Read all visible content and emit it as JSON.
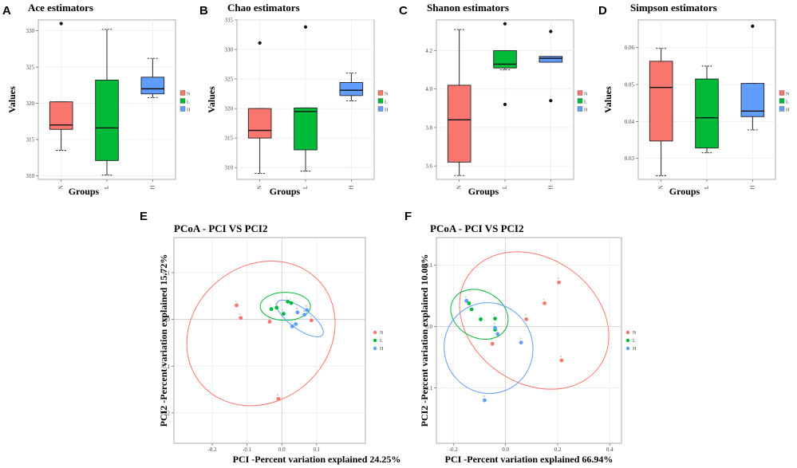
{
  "colors": {
    "N": "#f8766d",
    "L": "#00ba38",
    "H": "#619cff",
    "grid": "#ebebeb",
    "panel_border": "#9a9a9a"
  },
  "legend": [
    "N",
    "L",
    "H"
  ],
  "chart_data": [
    {
      "id": "A",
      "letter": "A",
      "type": "box",
      "title": "Ace estimators",
      "xlabel": "Groups",
      "ylabel": "Values",
      "ylim": [
        309.5,
        331.5
      ],
      "yticks": [
        310,
        315,
        320,
        325,
        330
      ],
      "categories": [
        "N",
        "L",
        "H"
      ],
      "boxes": [
        {
          "group": "N",
          "whisker_low": 313.5,
          "q1": 316.4,
          "median": 317.0,
          "q3": 320.2,
          "whisker_high": 320.2,
          "outliers": [
            331.0
          ]
        },
        {
          "group": "L",
          "whisker_low": 310.1,
          "q1": 312.1,
          "median": 316.6,
          "q3": 323.2,
          "whisker_high": 330.2,
          "outliers": []
        },
        {
          "group": "H",
          "whisker_low": 320.8,
          "q1": 321.3,
          "median": 322.0,
          "q3": 323.6,
          "whisker_high": 326.2,
          "outliers": []
        }
      ]
    },
    {
      "id": "B",
      "letter": "B",
      "type": "box",
      "title": "Chao estimators",
      "xlabel": "Groups",
      "ylabel": "Values",
      "ylim": [
        308.0,
        335.0
      ],
      "yticks": [
        310,
        315,
        320,
        325,
        330,
        335
      ],
      "categories": [
        "N",
        "L",
        "H"
      ],
      "boxes": [
        {
          "group": "N",
          "whisker_low": 309.0,
          "q1": 315.0,
          "median": 316.3,
          "q3": 320.0,
          "whisker_high": 320.0,
          "outliers": [
            331.1
          ]
        },
        {
          "group": "L",
          "whisker_low": 309.4,
          "q1": 313.0,
          "median": 319.5,
          "q3": 320.1,
          "whisker_high": 320.1,
          "outliers": [
            333.8
          ]
        },
        {
          "group": "H",
          "whisker_low": 321.3,
          "q1": 322.2,
          "median": 323.1,
          "q3": 324.4,
          "whisker_high": 326.0,
          "outliers": []
        }
      ]
    },
    {
      "id": "C",
      "letter": "C",
      "type": "box",
      "title": "Shanon estimators",
      "xlabel": "Groups",
      "ylabel": "",
      "ylim": [
        3.53,
        4.36
      ],
      "yticks": [
        3.6,
        3.8,
        4.0,
        4.2
      ],
      "ytick_labels": [
        "3.6",
        "3.8",
        "4.0",
        "4.2"
      ],
      "categories": [
        "N",
        "L",
        "H"
      ],
      "boxes": [
        {
          "group": "N",
          "whisker_low": 3.55,
          "q1": 3.62,
          "median": 3.84,
          "q3": 4.02,
          "whisker_high": 4.31,
          "outliers": []
        },
        {
          "group": "L",
          "whisker_low": 4.1,
          "q1": 4.11,
          "median": 4.13,
          "q3": 4.2,
          "whisker_high": 4.2,
          "outliers": [
            4.34,
            3.92
          ]
        },
        {
          "group": "H",
          "whisker_low": 4.14,
          "q1": 4.14,
          "median": 4.16,
          "q3": 4.17,
          "whisker_high": 4.17,
          "outliers": [
            4.3,
            3.94
          ]
        }
      ]
    },
    {
      "id": "D",
      "letter": "D",
      "type": "box",
      "title": "Simpson estimators",
      "xlabel": "Groups",
      "ylabel": "Values",
      "ylim": [
        0.0243,
        0.0675
      ],
      "yticks": [
        0.03,
        0.04,
        0.05,
        0.06
      ],
      "ytick_labels": [
        "0.03",
        "0.04",
        "0.05",
        "0.06"
      ],
      "categories": [
        "N",
        "L",
        "H"
      ],
      "boxes": [
        {
          "group": "N",
          "whisker_low": 0.0253,
          "q1": 0.0347,
          "median": 0.0492,
          "q3": 0.0563,
          "whisker_high": 0.0598,
          "outliers": []
        },
        {
          "group": "L",
          "whisker_low": 0.0315,
          "q1": 0.0328,
          "median": 0.041,
          "q3": 0.0515,
          "whisker_high": 0.055,
          "outliers": []
        },
        {
          "group": "H",
          "whisker_low": 0.0377,
          "q1": 0.0413,
          "median": 0.0428,
          "q3": 0.0503,
          "whisker_high": 0.0503,
          "outliers": [
            0.0658
          ]
        }
      ]
    },
    {
      "id": "E",
      "letter": "E",
      "type": "scatter",
      "title": "PCoA - PCI VS PCI2",
      "xlabel": "PCI -Percent variation explained 24.25%",
      "ylabel": "PCI2 -Percent variation explained 15.72%",
      "xlim": [
        -0.31,
        0.24
      ],
      "ylim": [
        -0.265,
        0.175
      ],
      "xticks": [
        -0.2,
        -0.1,
        0,
        0.1
      ],
      "xtick_labels": [
        "-0.2",
        "-0.1",
        "0.0",
        "0.1"
      ],
      "yticks": [
        -0.2,
        -0.1,
        0,
        0.1
      ],
      "ytick_labels": [
        "-0.2",
        "-0.1",
        "0.0",
        "0.1"
      ],
      "points": [
        {
          "group": "N",
          "x": -0.13,
          "y": 0.03,
          "label": "N"
        },
        {
          "group": "N",
          "x": -0.118,
          "y": 0.003,
          "label": "N"
        },
        {
          "group": "N",
          "x": -0.035,
          "y": -0.005,
          "label": "N"
        },
        {
          "group": "N",
          "x": 0.085,
          "y": -0.002,
          "label": "N"
        },
        {
          "group": "N",
          "x": -0.01,
          "y": -0.17,
          "label": "N"
        },
        {
          "group": "L",
          "x": -0.03,
          "y": 0.022,
          "label": "L"
        },
        {
          "group": "L",
          "x": -0.015,
          "y": 0.025,
          "label": "L"
        },
        {
          "group": "L",
          "x": 0.017,
          "y": 0.038,
          "label": "L"
        },
        {
          "group": "L",
          "x": 0.027,
          "y": 0.035,
          "label": "L"
        },
        {
          "group": "L",
          "x": 0.005,
          "y": 0.012,
          "label": "L"
        },
        {
          "group": "H",
          "x": 0.045,
          "y": 0.015,
          "label": "H"
        },
        {
          "group": "H",
          "x": 0.065,
          "y": 0.01,
          "label": "H"
        },
        {
          "group": "H",
          "x": 0.072,
          "y": 0.02,
          "label": "H"
        },
        {
          "group": "H",
          "x": 0.04,
          "y": -0.01,
          "label": "H"
        },
        {
          "group": "H",
          "x": 0.03,
          "y": -0.015,
          "label": "H"
        }
      ],
      "ellipses": [
        {
          "group": "N",
          "cx": -0.06,
          "cy": -0.03,
          "rx": 0.225,
          "ry": 0.145,
          "angle_deg": -40
        },
        {
          "group": "L",
          "cx": 0.01,
          "cy": 0.028,
          "rx": 0.072,
          "ry": 0.03,
          "angle_deg": 0
        },
        {
          "group": "H",
          "cx": 0.052,
          "cy": 0.002,
          "rx": 0.08,
          "ry": 0.022,
          "angle_deg": 36
        }
      ]
    },
    {
      "id": "F",
      "letter": "F",
      "type": "scatter",
      "title": "PCoA - PCI VS PCI2",
      "xlabel": "PCI -Percent variation explained 66.94%",
      "ylabel": "PCI2 -Percent variation explained 10.08%",
      "xlim": [
        -0.265,
        0.445
      ],
      "ylim": [
        -0.19,
        0.145
      ],
      "xticks": [
        -0.2,
        0,
        0.2,
        0.4
      ],
      "xtick_labels": [
        "-0.2",
        "0.0",
        "0.2",
        "0.4"
      ],
      "yticks": [
        -0.1,
        0,
        0.1
      ],
      "ytick_labels": [
        "-0.1",
        "0.0",
        "0.1"
      ],
      "points": [
        {
          "group": "N",
          "x": 0.205,
          "y": 0.072,
          "label": "N"
        },
        {
          "group": "N",
          "x": 0.15,
          "y": 0.038,
          "label": "N"
        },
        {
          "group": "N",
          "x": 0.08,
          "y": 0.012,
          "label": "N"
        },
        {
          "group": "N",
          "x": -0.05,
          "y": -0.028,
          "label": "N"
        },
        {
          "group": "N",
          "x": 0.215,
          "y": -0.055,
          "label": "N"
        },
        {
          "group": "L",
          "x": -0.14,
          "y": 0.038,
          "label": "L"
        },
        {
          "group": "L",
          "x": -0.13,
          "y": 0.028,
          "label": "L"
        },
        {
          "group": "L",
          "x": -0.095,
          "y": 0.012,
          "label": "L"
        },
        {
          "group": "L",
          "x": -0.04,
          "y": 0.013,
          "label": "L"
        },
        {
          "group": "L",
          "x": -0.04,
          "y": -0.005,
          "label": "L"
        },
        {
          "group": "H",
          "x": -0.15,
          "y": 0.042,
          "label": "H"
        },
        {
          "group": "H",
          "x": -0.04,
          "y": -0.002,
          "label": "H"
        },
        {
          "group": "H",
          "x": -0.03,
          "y": -0.012,
          "label": "H"
        },
        {
          "group": "H",
          "x": 0.06,
          "y": -0.026,
          "label": "H"
        },
        {
          "group": "H",
          "x": -0.08,
          "y": -0.12,
          "label": "H"
        }
      ],
      "ellipses": [
        {
          "group": "N",
          "cx": 0.11,
          "cy": 0.01,
          "rx": 0.24,
          "ry": 0.13,
          "angle_deg": -55
        },
        {
          "group": "L",
          "cx": -0.1,
          "cy": 0.02,
          "rx": 0.115,
          "ry": 0.038,
          "angle_deg": 28
        },
        {
          "group": "H",
          "cx": -0.065,
          "cy": -0.035,
          "rx": 0.175,
          "ry": 0.072,
          "angle_deg": 68
        }
      ]
    }
  ]
}
